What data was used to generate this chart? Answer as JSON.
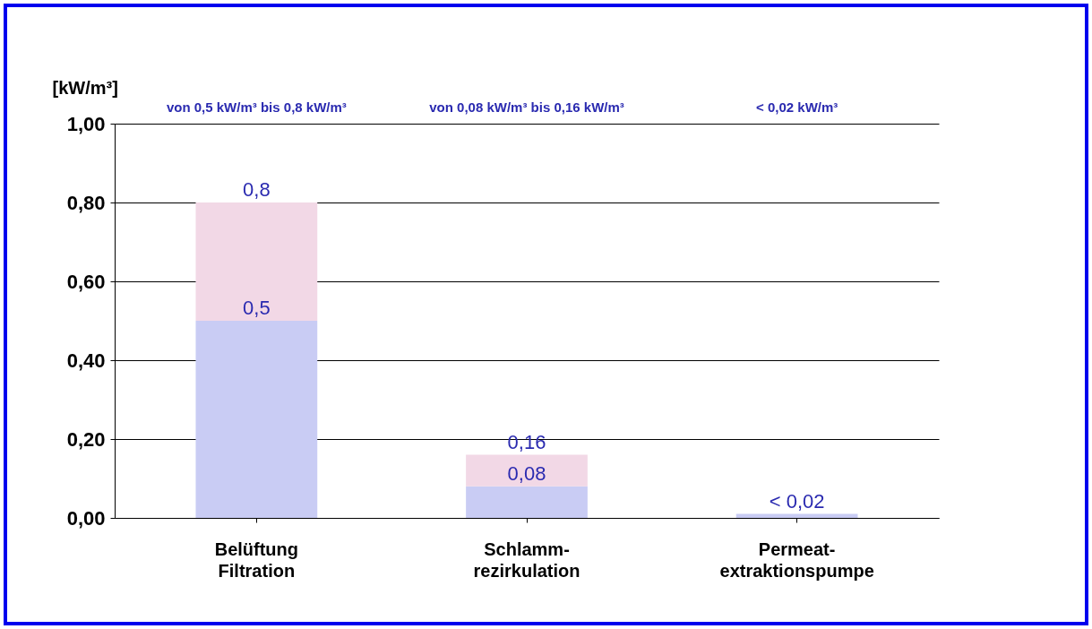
{
  "chart_data": {
    "type": "bar",
    "ylabel": "[kW/m³]",
    "stacked": true,
    "categories": [
      "Belüftung\nFiltration",
      "Schlamm-\nrezirkulation",
      "Permeat-\nextraktionspumpe"
    ],
    "series": [
      {
        "color": "#c9ccf4",
        "values": [
          0.5,
          0.08,
          0.01
        ],
        "value_labels": [
          "0,5",
          "0,08",
          "< 0,02"
        ]
      },
      {
        "color": "#f2d8e6",
        "values": [
          0.3,
          0.08,
          null
        ]
      }
    ],
    "totals": [
      "0,8",
      "0,16",
      null
    ],
    "ylim": [
      0,
      1
    ],
    "yticks": [
      {
        "value": 0,
        "label": "0,00"
      },
      {
        "value": 0.2,
        "label": "0,20"
      },
      {
        "value": 0.4,
        "label": "0,40"
      },
      {
        "value": 0.6,
        "label": "0,60"
      },
      {
        "value": 0.8,
        "label": "0,80"
      },
      {
        "value": 1,
        "label": "1,00"
      }
    ],
    "grid": "y",
    "annotations": [
      "von 0,5 kW/m³ bis 0,8 kW/m³",
      "von 0,08 kW/m³ bis 0,16 kW/m³",
      "< 0,02 kW/m³"
    ]
  }
}
